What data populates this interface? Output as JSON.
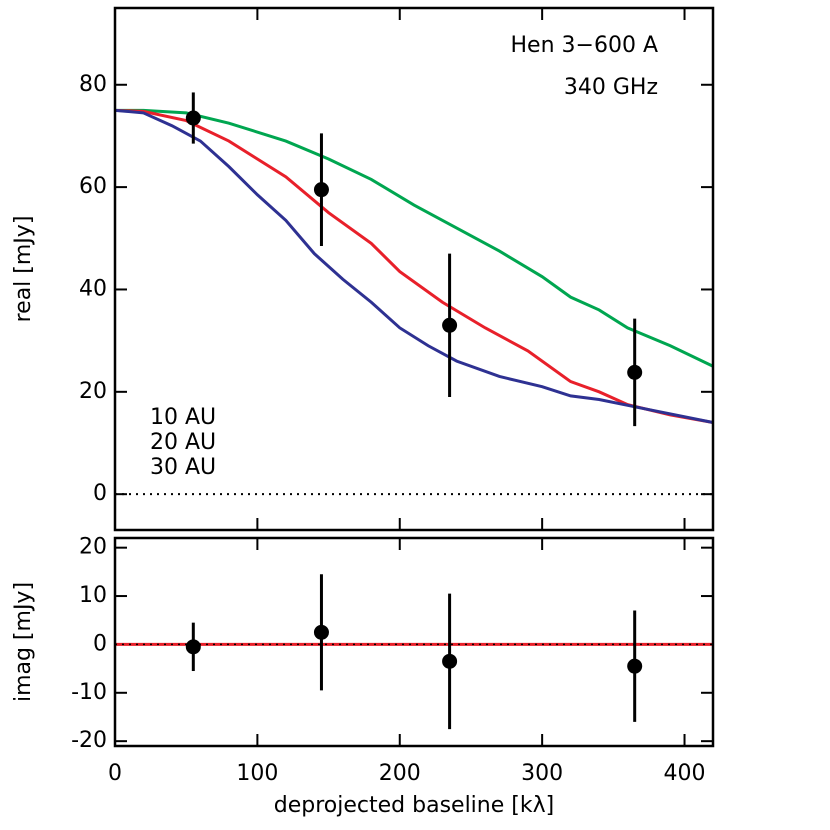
{
  "chart_data": [
    {
      "type": "line",
      "annotations": [
        "Hen 3−600 A",
        "340 GHz"
      ],
      "ylabel": "real [mJy]",
      "xlim": [
        0,
        420
      ],
      "ylim": [
        -7,
        95
      ],
      "xticks": [
        0,
        100,
        200,
        300,
        400
      ],
      "yticks": [
        0,
        20,
        40,
        60,
        80
      ],
      "zero_line": true,
      "series": [
        {
          "name": "10 AU",
          "color": "#00a650",
          "x": [
            0,
            20,
            50,
            80,
            120,
            150,
            180,
            210,
            240,
            270,
            300,
            320,
            340,
            360,
            390,
            420
          ],
          "values": [
            75,
            75,
            74.5,
            72.5,
            69,
            65.5,
            61.5,
            56.5,
            52,
            47.5,
            42.5,
            38.5,
            36,
            32.5,
            29,
            25
          ]
        },
        {
          "name": "20 AU",
          "color": "#e8202a",
          "x": [
            0,
            20,
            50,
            80,
            100,
            120,
            150,
            180,
            200,
            230,
            260,
            290,
            320,
            340,
            360,
            390,
            420
          ],
          "values": [
            75,
            74.8,
            73,
            69,
            65.5,
            62,
            55,
            49,
            43.5,
            37.5,
            32.5,
            28,
            22,
            20,
            17.5,
            15.5,
            14
          ]
        },
        {
          "name": "30 AU",
          "color": "#2e3192",
          "x": [
            0,
            20,
            40,
            60,
            80,
            100,
            120,
            140,
            160,
            180,
            200,
            220,
            240,
            270,
            300,
            320,
            340,
            370,
            420
          ],
          "values": [
            75,
            74.5,
            72,
            69,
            64,
            58.5,
            53.5,
            47,
            42,
            37.5,
            32.5,
            29,
            26,
            23,
            21,
            19.2,
            18.5,
            16.8,
            14
          ]
        }
      ],
      "points": {
        "color": "#000000",
        "x": [
          55,
          145,
          235,
          365
        ],
        "values": [
          73.5,
          59.5,
          33,
          23.8
        ],
        "errors": [
          5,
          11,
          14,
          10.5
        ]
      }
    },
    {
      "type": "scatter",
      "ylabel": "imag [mJy]",
      "xlabel": "deprojected baseline [kλ]",
      "xlim": [
        0,
        420
      ],
      "ylim": [
        -21,
        22
      ],
      "xticks": [
        0,
        100,
        200,
        300,
        400
      ],
      "yticks": [
        -20,
        -10,
        0,
        10,
        20
      ],
      "zero_line": true,
      "series": [
        {
          "color": "#e8202a",
          "x": [
            0,
            420
          ],
          "values": [
            0,
            0
          ]
        }
      ],
      "points": {
        "color": "#000000",
        "x": [
          55,
          145,
          235,
          365
        ],
        "values": [
          -0.5,
          2.5,
          -3.5,
          -4.5
        ],
        "errors": [
          5,
          12,
          14,
          11.5
        ]
      }
    }
  ]
}
